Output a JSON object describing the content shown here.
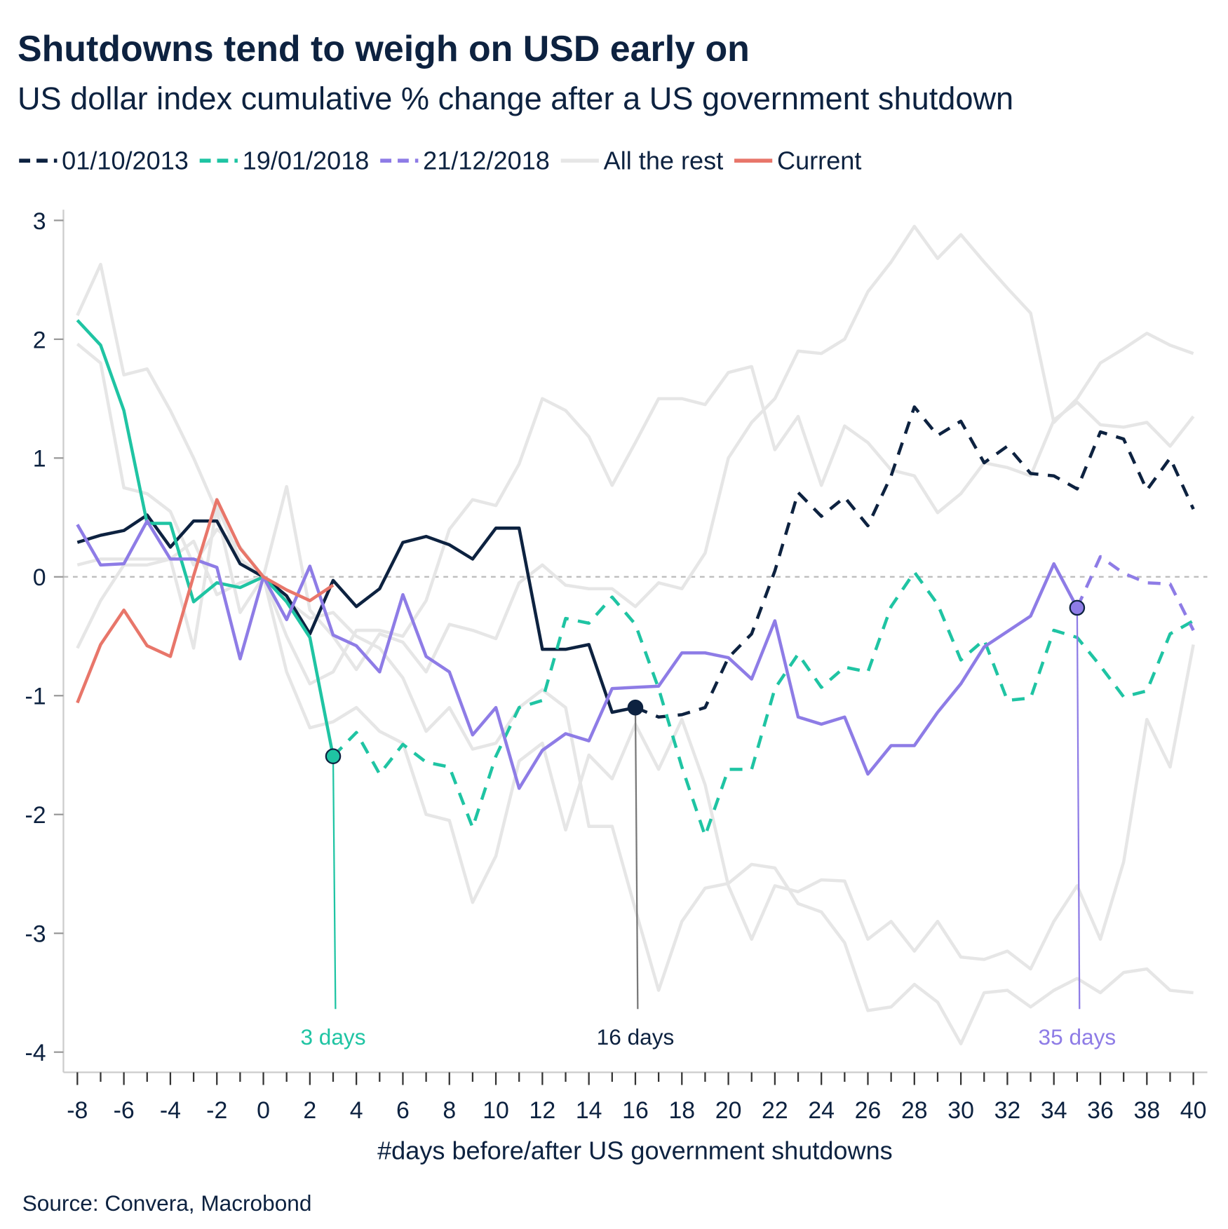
{
  "chart_data": {
    "type": "line",
    "title": "Shutdowns tend to weigh on USD early on",
    "subtitle": "US dollar index cumulative % change after a US government shutdown",
    "xlabel": "#days before/after US government shutdowns",
    "source": "Source: Convera, Macrobond",
    "x": [
      -8,
      -7,
      -6,
      -5,
      -4,
      -3,
      -2,
      -1,
      0,
      1,
      2,
      3,
      4,
      5,
      6,
      7,
      8,
      9,
      10,
      11,
      12,
      13,
      14,
      15,
      16,
      17,
      18,
      19,
      20,
      21,
      22,
      23,
      24,
      25,
      26,
      27,
      28,
      29,
      30,
      31,
      32,
      33,
      34,
      35,
      36,
      37,
      38,
      39,
      40
    ],
    "xlim": [
      -8.6,
      40.6
    ],
    "ylim": [
      -4.17,
      3.09
    ],
    "xticks": [
      -8,
      -6,
      -4,
      -2,
      0,
      2,
      4,
      6,
      8,
      10,
      12,
      14,
      16,
      18,
      20,
      22,
      24,
      26,
      28,
      30,
      32,
      34,
      36,
      38,
      40
    ],
    "xminor_ticks": [
      -7,
      -5,
      -3,
      -1,
      1,
      3,
      5,
      7,
      9,
      11,
      13,
      15,
      17,
      19,
      21,
      23,
      25,
      27,
      29,
      31,
      33,
      35,
      37,
      39
    ],
    "yticks": [
      -4,
      -3,
      -2,
      -1,
      0,
      1,
      2,
      3
    ],
    "zero_line": true,
    "series": [
      {
        "name": "01/10/2013",
        "color": "#0d2240",
        "values": [
          0.29,
          0.35,
          0.39,
          0.52,
          0.25,
          0.47,
          0.47,
          0.11,
          0,
          -0.16,
          -0.48,
          -0.03,
          -0.25,
          -0.1,
          0.29,
          0.34,
          0.27,
          0.15,
          0.41,
          0.41,
          -0.61,
          -0.61,
          -0.57,
          -1.14,
          -1.1,
          -1.18,
          -1.16,
          -1.1,
          -0.68,
          -0.48,
          0.05,
          0.71,
          0.51,
          0.67,
          0.43,
          0.85,
          1.43,
          1.19,
          1.31,
          0.96,
          1.1,
          0.87,
          0.85,
          0.74,
          1.22,
          1.16,
          0.73,
          1.0,
          0.57
        ]
      },
      {
        "name": "19/01/2018",
        "color": "#1fc4a3",
        "values": [
          2.16,
          1.95,
          1.4,
          0.45,
          0.45,
          -0.21,
          -0.05,
          -0.09,
          0,
          -0.21,
          -0.51,
          -1.51,
          -1.31,
          -1.66,
          -1.41,
          -1.56,
          -1.6,
          -2.11,
          -1.51,
          -1.1,
          -1.04,
          -0.35,
          -0.39,
          -0.17,
          -0.4,
          -0.94,
          -1.6,
          -2.18,
          -1.62,
          -1.62,
          -0.94,
          -0.65,
          -0.93,
          -0.76,
          -0.8,
          -0.25,
          0.04,
          -0.23,
          -0.7,
          -0.53,
          -1.04,
          -1.02,
          -0.45,
          -0.51,
          -0.75,
          -1.01,
          -0.96,
          -0.48,
          -0.37
        ]
      },
      {
        "name": "21/12/2018",
        "color": "#8e7ce6",
        "values": [
          0.44,
          0.1,
          0.11,
          0.47,
          0.15,
          0.15,
          0.08,
          -0.69,
          0,
          -0.36,
          0.09,
          -0.49,
          -0.58,
          -0.8,
          -0.15,
          -0.67,
          -0.8,
          -1.33,
          -1.1,
          -1.78,
          -1.46,
          -1.32,
          -1.38,
          -0.94,
          -0.93,
          -0.92,
          -0.64,
          -0.64,
          -0.68,
          -0.86,
          -0.37,
          -1.18,
          -1.24,
          -1.18,
          -1.66,
          -1.42,
          -1.42,
          -1.14,
          -0.9,
          -0.59,
          -0.46,
          -0.33,
          0.11,
          -0.26,
          0.17,
          0.03,
          -0.05,
          -0.06,
          -0.45
        ]
      },
      {
        "name": "All the rest",
        "color": "#e6e6e6",
        "lines": [
          [
            2.2,
            2.63,
            1.7,
            1.75,
            1.4,
            1.0,
            0.55,
            -0.3,
            0,
            -0.5,
            -0.9,
            -0.8,
            -0.45,
            -0.45,
            -0.5,
            -0.2,
            0.4,
            0.65,
            0.6,
            0.95,
            1.5,
            1.4,
            1.18,
            0.77,
            1.13,
            1.5,
            1.5,
            1.45,
            1.72,
            1.77,
            1.07,
            1.35,
            0.77,
            1.27,
            1.13,
            0.9,
            0.85,
            0.54,
            0.7,
            0.96,
            0.92,
            0.85,
            1.32,
            1.47,
            1.28,
            1.26,
            1.3,
            1.1,
            1.35
          ],
          [
            1.96,
            1.8,
            0.75,
            0.7,
            0.55,
            0.1,
            0.4,
            0.25,
            0,
            -0.8,
            -1.27,
            -1.22,
            -1.1,
            -1.3,
            -1.4,
            -2.0,
            -2.05,
            -2.74,
            -2.35,
            -1.55,
            -1.4,
            -2.13,
            -1.5,
            -1.7,
            -1.24,
            -1.62,
            -1.2,
            -1.75,
            -2.6,
            -3.05,
            -2.6,
            -2.65,
            -2.55,
            -2.56,
            -3.05,
            -2.9,
            -3.15,
            -2.9,
            -3.2,
            -3.22,
            -3.15,
            -3.3,
            -2.9,
            -2.6,
            -3.05,
            -2.4,
            -1.2,
            -1.6,
            -0.57
          ],
          [
            -0.6,
            -0.2,
            0.1,
            0.1,
            0.15,
            -0.6,
            0.6,
            0.15,
            0,
            0.76,
            -0.28,
            -0.5,
            -0.78,
            -0.48,
            -0.55,
            -0.8,
            -0.4,
            -0.45,
            -0.52,
            -0.05,
            0.1,
            -0.07,
            -0.1,
            -0.1,
            -0.25,
            -0.05,
            -0.1,
            0.2,
            1.0,
            1.3,
            1.5,
            1.9,
            1.88,
            2.0,
            2.4,
            2.65,
            2.95,
            2.68,
            2.88,
            2.65,
            2.43,
            2.22,
            1.3,
            1.5,
            1.8,
            1.92,
            2.05,
            1.95,
            1.88
          ],
          [
            0.1,
            0.15,
            0.15,
            0.15,
            0.15,
            0.3,
            -0.15,
            -0.05,
            0,
            -0.2,
            -0.35,
            -0.3,
            -0.5,
            -0.6,
            -0.85,
            -1.3,
            -1.1,
            -1.45,
            -1.4,
            -1.1,
            -0.95,
            -1.1,
            -2.1,
            -2.1,
            -2.8,
            -3.48,
            -2.9,
            -2.62,
            -2.58,
            -2.42,
            -2.45,
            -2.75,
            -2.82,
            -3.08,
            -3.65,
            -3.62,
            -3.43,
            -3.58,
            -3.93,
            -3.5,
            -3.48,
            -3.62,
            -3.48,
            -3.38,
            -3.5,
            -3.33,
            -3.3,
            -3.48,
            -3.5
          ]
        ]
      },
      {
        "name": "Current",
        "color": "#e8766a",
        "values": [
          -1.06,
          -0.57,
          -0.28,
          -0.58,
          -0.67,
          0.01,
          0.65,
          0.24,
          0,
          -0.11,
          -0.2,
          -0.07,
          null,
          null,
          null,
          null,
          null,
          null,
          null,
          null,
          null,
          null,
          null,
          null,
          null,
          null,
          null,
          null,
          null,
          null,
          null,
          null,
          null,
          null,
          null,
          null,
          null,
          null,
          null,
          null,
          null,
          null,
          null,
          null,
          null,
          null,
          null,
          null,
          null
        ]
      }
    ],
    "annotations": [
      {
        "series": 1,
        "x": 3,
        "label": "3 days",
        "line_color": "#1fc4a3",
        "text_color": "#1fc4a3"
      },
      {
        "series": 0,
        "x": 16,
        "label": "16 days",
        "line_color": "#777777",
        "text_color": "#0d2240"
      },
      {
        "series": 2,
        "x": 35,
        "label": "35 days",
        "line_color": "#8e7ce6",
        "text_color": "#8e7ce6"
      }
    ]
  }
}
